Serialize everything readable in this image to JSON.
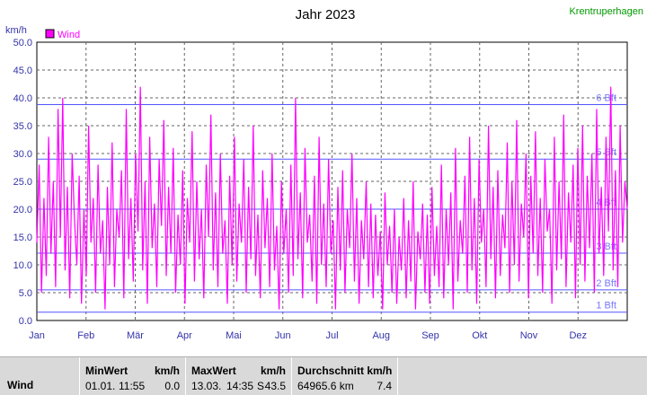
{
  "chart_data": {
    "type": "line",
    "title": "Jahr 2023",
    "station": "Krentruperhagen",
    "ylabel": "km/h",
    "ylim": [
      0,
      50
    ],
    "y_ticks": [
      "0.0",
      "5.0",
      "10.0",
      "15.0",
      "20.0",
      "25.0",
      "30.0",
      "35.0",
      "40.0",
      "45.0",
      "50.0"
    ],
    "x_tick_labels": [
      "Jan",
      "Feb",
      "Mär",
      "Apr",
      "Mai",
      "Jun",
      "Jul",
      "Aug",
      "Sep",
      "Okt",
      "Nov",
      "Dez"
    ],
    "grid": true,
    "legend": "top-left",
    "series": [
      {
        "name": "Wind",
        "color": "#ff00ff",
        "values": [
          14,
          28,
          5,
          22,
          8,
          33,
          12,
          25,
          6,
          38,
          15,
          40,
          9,
          24,
          4,
          30,
          18,
          10,
          26,
          3,
          20,
          8,
          35,
          14,
          22,
          5,
          28,
          12,
          18,
          2,
          24,
          10,
          32,
          6,
          20,
          15,
          27,
          4,
          38,
          11,
          22,
          7,
          30,
          16,
          42,
          9,
          25,
          3,
          33,
          13,
          21,
          6,
          29,
          17,
          36,
          8,
          24,
          12,
          31,
          5,
          19,
          10,
          27,
          3,
          22,
          14,
          34,
          7,
          25,
          11,
          20,
          4,
          28,
          15,
          37,
          9,
          23,
          6,
          30,
          12,
          18,
          3,
          26,
          10,
          33,
          7,
          21,
          14,
          29,
          5,
          24,
          11,
          35,
          8,
          19,
          4,
          27,
          13,
          22,
          6,
          30,
          9,
          17,
          2,
          25,
          12,
          20,
          5,
          28,
          8,
          40,
          11,
          23,
          4,
          31,
          14,
          19,
          7,
          26,
          3,
          33,
          10,
          21,
          6,
          29,
          12,
          18,
          2,
          24,
          9,
          27,
          5,
          20,
          13,
          30,
          7,
          22,
          3,
          18,
          11,
          25,
          6,
          21,
          4,
          19,
          8,
          16,
          2,
          23,
          10,
          17,
          5,
          20,
          3,
          15,
          9,
          22,
          4,
          18,
          7,
          25,
          2,
          16,
          11,
          21,
          5,
          19,
          3,
          24,
          8,
          17,
          6,
          28,
          4,
          20,
          10,
          23,
          2,
          31,
          7,
          18,
          12,
          26,
          5,
          33,
          9,
          22,
          3,
          29,
          14,
          20,
          6,
          35,
          11,
          24,
          4,
          27,
          8,
          19,
          13,
          32,
          5,
          25,
          10,
          36,
          7,
          21,
          15,
          30,
          4,
          26,
          12,
          34,
          8,
          22,
          5,
          29,
          16,
          20,
          3,
          33,
          9,
          25,
          11,
          37,
          6,
          23,
          14,
          28,
          4,
          31,
          10,
          35,
          7,
          26,
          13,
          30,
          5,
          38,
          12,
          24,
          8,
          33,
          16,
          42,
          9,
          27,
          6,
          35,
          14,
          25,
          20
        ],
        "max": 43.5,
        "max_date": "13.03. 14:35"
      }
    ],
    "bft_lines": [
      {
        "label": "6 Bft",
        "value": 38.8
      },
      {
        "label": "5 Bft",
        "value": 29.0
      },
      {
        "label": "4 Bft",
        "value": 20.0
      },
      {
        "label": "3 Bft",
        "value": 12.1
      },
      {
        "label": "2 Bft",
        "value": 5.5
      },
      {
        "label": "1 Bft",
        "value": 1.5
      }
    ]
  },
  "stats": {
    "row_label": "Wind",
    "min": {
      "header": "MinWert",
      "unit": "km/h",
      "date": "01.01.",
      "time": "11:55",
      "value": "0.0"
    },
    "max": {
      "header": "MaxWert",
      "unit": "km/h",
      "date": "13.03.",
      "time": "14:35",
      "dir": "S",
      "value": "43.5"
    },
    "avg": {
      "header": "Durchschnitt km/h",
      "distance": "64965.6 km",
      "value": "7.4"
    }
  },
  "colors": {
    "series": "#ff00ff",
    "grid": "#666666",
    "bft": "#5555ff",
    "station": "#009900"
  }
}
